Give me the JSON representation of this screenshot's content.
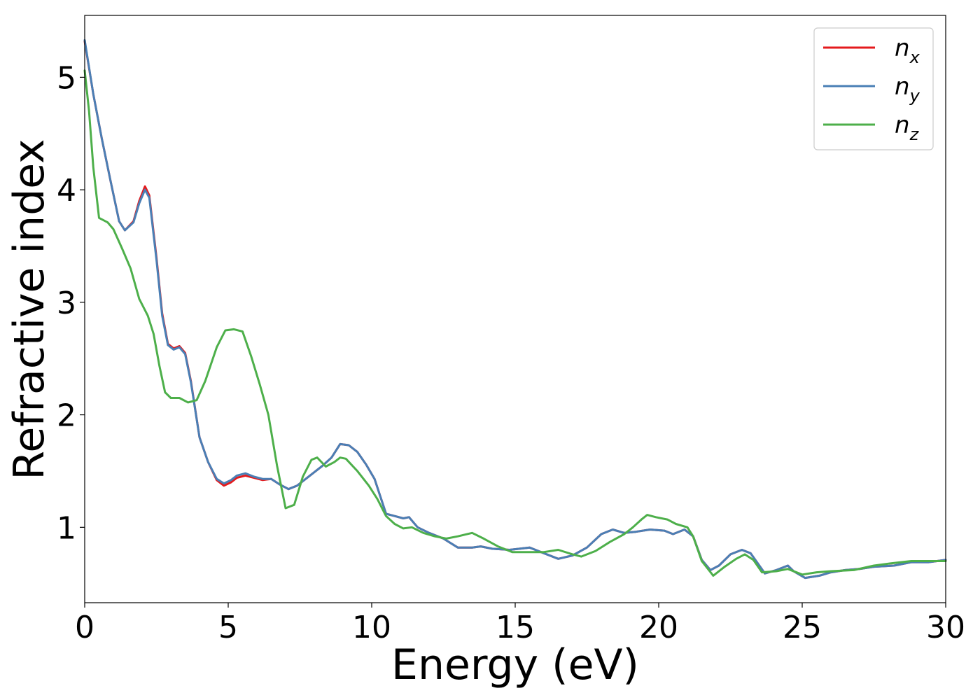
{
  "chart_data": {
    "type": "line",
    "xlabel": "Energy (eV)",
    "ylabel": "Refractive index",
    "xlim": [
      0,
      30
    ],
    "ylim": [
      0.33,
      5.55
    ],
    "xticks": [
      0,
      5,
      10,
      15,
      20,
      25,
      30
    ],
    "yticks": [
      1,
      2,
      3,
      4,
      5
    ],
    "grid": false,
    "legend_position": "top-right",
    "series": [
      {
        "name": "n_x",
        "legend_main": "n",
        "legend_sub": "x",
        "color": "#e41a1c",
        "points": [
          [
            0,
            5.32
          ],
          [
            0.3,
            4.85
          ],
          [
            0.6,
            4.45
          ],
          [
            0.9,
            4.08
          ],
          [
            1.2,
            3.72
          ],
          [
            1.4,
            3.64
          ],
          [
            1.7,
            3.72
          ],
          [
            1.9,
            3.9
          ],
          [
            2.1,
            4.03
          ],
          [
            2.25,
            3.95
          ],
          [
            2.5,
            3.4
          ],
          [
            2.7,
            2.9
          ],
          [
            2.9,
            2.63
          ],
          [
            3.1,
            2.59
          ],
          [
            3.3,
            2.61
          ],
          [
            3.5,
            2.55
          ],
          [
            3.7,
            2.3
          ],
          [
            4.0,
            1.8
          ],
          [
            4.3,
            1.58
          ],
          [
            4.6,
            1.42
          ],
          [
            4.85,
            1.37
          ],
          [
            5.1,
            1.4
          ],
          [
            5.3,
            1.44
          ],
          [
            5.6,
            1.46
          ],
          [
            5.9,
            1.44
          ],
          [
            6.2,
            1.42
          ],
          [
            6.5,
            1.43
          ],
          [
            6.8,
            1.38
          ],
          [
            7.1,
            1.34
          ],
          [
            7.4,
            1.37
          ],
          [
            7.7,
            1.43
          ],
          [
            8.0,
            1.49
          ],
          [
            8.3,
            1.55
          ],
          [
            8.6,
            1.62
          ],
          [
            8.9,
            1.74
          ],
          [
            9.2,
            1.73
          ],
          [
            9.5,
            1.67
          ],
          [
            9.8,
            1.56
          ],
          [
            10.1,
            1.43
          ],
          [
            10.5,
            1.12
          ],
          [
            10.8,
            1.1
          ],
          [
            11.1,
            1.08
          ],
          [
            11.3,
            1.09
          ],
          [
            11.6,
            1.0
          ],
          [
            12.0,
            0.95
          ],
          [
            12.5,
            0.9
          ],
          [
            13.0,
            0.82
          ],
          [
            13.5,
            0.82
          ],
          [
            13.8,
            0.83
          ],
          [
            14.2,
            0.81
          ],
          [
            14.8,
            0.8
          ],
          [
            15.5,
            0.82
          ],
          [
            16.0,
            0.77
          ],
          [
            16.5,
            0.72
          ],
          [
            17.0,
            0.75
          ],
          [
            17.5,
            0.82
          ],
          [
            18.0,
            0.94
          ],
          [
            18.4,
            0.98
          ],
          [
            18.8,
            0.95
          ],
          [
            19.2,
            0.96
          ],
          [
            19.7,
            0.98
          ],
          [
            20.2,
            0.97
          ],
          [
            20.5,
            0.94
          ],
          [
            20.9,
            0.98
          ],
          [
            21.2,
            0.92
          ],
          [
            21.5,
            0.71
          ],
          [
            21.8,
            0.62
          ],
          [
            22.1,
            0.66
          ],
          [
            22.5,
            0.76
          ],
          [
            22.9,
            0.8
          ],
          [
            23.2,
            0.77
          ],
          [
            23.7,
            0.59
          ],
          [
            24.1,
            0.62
          ],
          [
            24.5,
            0.66
          ],
          [
            24.7,
            0.61
          ],
          [
            25.1,
            0.55
          ],
          [
            25.6,
            0.57
          ],
          [
            26.0,
            0.6
          ],
          [
            26.5,
            0.62
          ],
          [
            27.0,
            0.63
          ],
          [
            27.5,
            0.65
          ],
          [
            28.2,
            0.66
          ],
          [
            28.8,
            0.69
          ],
          [
            29.4,
            0.69
          ],
          [
            30.0,
            0.71
          ]
        ]
      },
      {
        "name": "n_y",
        "legend_main": "n",
        "legend_sub": "y",
        "color": "#4a7fb5",
        "points": [
          [
            0,
            5.33
          ],
          [
            0.3,
            4.85
          ],
          [
            0.6,
            4.45
          ],
          [
            0.9,
            4.08
          ],
          [
            1.2,
            3.72
          ],
          [
            1.4,
            3.64
          ],
          [
            1.7,
            3.71
          ],
          [
            1.9,
            3.88
          ],
          [
            2.1,
            4.0
          ],
          [
            2.25,
            3.93
          ],
          [
            2.5,
            3.38
          ],
          [
            2.7,
            2.88
          ],
          [
            2.9,
            2.62
          ],
          [
            3.1,
            2.58
          ],
          [
            3.3,
            2.6
          ],
          [
            3.5,
            2.54
          ],
          [
            3.7,
            2.29
          ],
          [
            4.0,
            1.8
          ],
          [
            4.3,
            1.58
          ],
          [
            4.6,
            1.43
          ],
          [
            4.85,
            1.39
          ],
          [
            5.1,
            1.42
          ],
          [
            5.3,
            1.46
          ],
          [
            5.6,
            1.48
          ],
          [
            5.9,
            1.45
          ],
          [
            6.2,
            1.43
          ],
          [
            6.5,
            1.43
          ],
          [
            6.8,
            1.38
          ],
          [
            7.1,
            1.34
          ],
          [
            7.4,
            1.37
          ],
          [
            7.7,
            1.43
          ],
          [
            8.0,
            1.49
          ],
          [
            8.3,
            1.55
          ],
          [
            8.6,
            1.62
          ],
          [
            8.9,
            1.74
          ],
          [
            9.2,
            1.73
          ],
          [
            9.5,
            1.67
          ],
          [
            9.8,
            1.56
          ],
          [
            10.1,
            1.43
          ],
          [
            10.5,
            1.12
          ],
          [
            10.8,
            1.1
          ],
          [
            11.1,
            1.08
          ],
          [
            11.3,
            1.09
          ],
          [
            11.6,
            1.0
          ],
          [
            12.0,
            0.95
          ],
          [
            12.5,
            0.9
          ],
          [
            13.0,
            0.82
          ],
          [
            13.5,
            0.82
          ],
          [
            13.8,
            0.83
          ],
          [
            14.2,
            0.81
          ],
          [
            14.8,
            0.8
          ],
          [
            15.5,
            0.82
          ],
          [
            16.0,
            0.77
          ],
          [
            16.5,
            0.72
          ],
          [
            17.0,
            0.75
          ],
          [
            17.5,
            0.82
          ],
          [
            18.0,
            0.94
          ],
          [
            18.4,
            0.98
          ],
          [
            18.8,
            0.95
          ],
          [
            19.2,
            0.96
          ],
          [
            19.7,
            0.98
          ],
          [
            20.2,
            0.97
          ],
          [
            20.5,
            0.94
          ],
          [
            20.9,
            0.98
          ],
          [
            21.2,
            0.92
          ],
          [
            21.5,
            0.71
          ],
          [
            21.8,
            0.62
          ],
          [
            22.1,
            0.66
          ],
          [
            22.5,
            0.76
          ],
          [
            22.9,
            0.8
          ],
          [
            23.2,
            0.77
          ],
          [
            23.7,
            0.59
          ],
          [
            24.1,
            0.62
          ],
          [
            24.5,
            0.66
          ],
          [
            24.7,
            0.61
          ],
          [
            25.1,
            0.55
          ],
          [
            25.6,
            0.57
          ],
          [
            26.0,
            0.6
          ],
          [
            26.5,
            0.62
          ],
          [
            27.0,
            0.63
          ],
          [
            27.5,
            0.65
          ],
          [
            28.2,
            0.66
          ],
          [
            28.8,
            0.69
          ],
          [
            29.4,
            0.69
          ],
          [
            30.0,
            0.71
          ]
        ]
      },
      {
        "name": "n_z",
        "legend_main": "n",
        "legend_sub": "z",
        "color": "#4daf4a",
        "points": [
          [
            0,
            5.06
          ],
          [
            0.15,
            4.7
          ],
          [
            0.3,
            4.2
          ],
          [
            0.5,
            3.75
          ],
          [
            0.8,
            3.71
          ],
          [
            1.0,
            3.65
          ],
          [
            1.3,
            3.48
          ],
          [
            1.6,
            3.3
          ],
          [
            1.9,
            3.03
          ],
          [
            2.2,
            2.88
          ],
          [
            2.4,
            2.72
          ],
          [
            2.6,
            2.44
          ],
          [
            2.8,
            2.2
          ],
          [
            3.0,
            2.15
          ],
          [
            3.3,
            2.15
          ],
          [
            3.6,
            2.11
          ],
          [
            3.9,
            2.13
          ],
          [
            4.2,
            2.3
          ],
          [
            4.6,
            2.6
          ],
          [
            4.9,
            2.75
          ],
          [
            5.2,
            2.76
          ],
          [
            5.5,
            2.74
          ],
          [
            5.8,
            2.52
          ],
          [
            6.1,
            2.27
          ],
          [
            6.4,
            2.0
          ],
          [
            6.7,
            1.55
          ],
          [
            7.0,
            1.17
          ],
          [
            7.3,
            1.2
          ],
          [
            7.6,
            1.45
          ],
          [
            7.9,
            1.6
          ],
          [
            8.1,
            1.62
          ],
          [
            8.4,
            1.54
          ],
          [
            8.7,
            1.58
          ],
          [
            8.9,
            1.62
          ],
          [
            9.1,
            1.61
          ],
          [
            9.5,
            1.5
          ],
          [
            9.9,
            1.37
          ],
          [
            10.2,
            1.25
          ],
          [
            10.5,
            1.1
          ],
          [
            10.8,
            1.03
          ],
          [
            11.1,
            0.99
          ],
          [
            11.4,
            1.0
          ],
          [
            11.8,
            0.95
          ],
          [
            12.2,
            0.92
          ],
          [
            12.6,
            0.9
          ],
          [
            13.0,
            0.92
          ],
          [
            13.5,
            0.95
          ],
          [
            13.9,
            0.9
          ],
          [
            14.4,
            0.83
          ],
          [
            14.9,
            0.78
          ],
          [
            15.5,
            0.78
          ],
          [
            16.0,
            0.78
          ],
          [
            16.5,
            0.8
          ],
          [
            17.0,
            0.76
          ],
          [
            17.3,
            0.74
          ],
          [
            17.8,
            0.79
          ],
          [
            18.3,
            0.87
          ],
          [
            18.8,
            0.94
          ],
          [
            19.1,
            1.0
          ],
          [
            19.4,
            1.07
          ],
          [
            19.6,
            1.11
          ],
          [
            19.9,
            1.09
          ],
          [
            20.3,
            1.07
          ],
          [
            20.6,
            1.03
          ],
          [
            21.0,
            1.0
          ],
          [
            21.2,
            0.92
          ],
          [
            21.5,
            0.7
          ],
          [
            21.9,
            0.57
          ],
          [
            22.3,
            0.65
          ],
          [
            22.7,
            0.72
          ],
          [
            23.0,
            0.76
          ],
          [
            23.3,
            0.71
          ],
          [
            23.6,
            0.6
          ],
          [
            24.1,
            0.61
          ],
          [
            24.5,
            0.63
          ],
          [
            25.0,
            0.58
          ],
          [
            25.5,
            0.6
          ],
          [
            26.0,
            0.61
          ],
          [
            26.8,
            0.62
          ],
          [
            27.5,
            0.66
          ],
          [
            28.1,
            0.68
          ],
          [
            28.8,
            0.7
          ],
          [
            29.4,
            0.7
          ],
          [
            30.0,
            0.7
          ]
        ]
      }
    ]
  }
}
